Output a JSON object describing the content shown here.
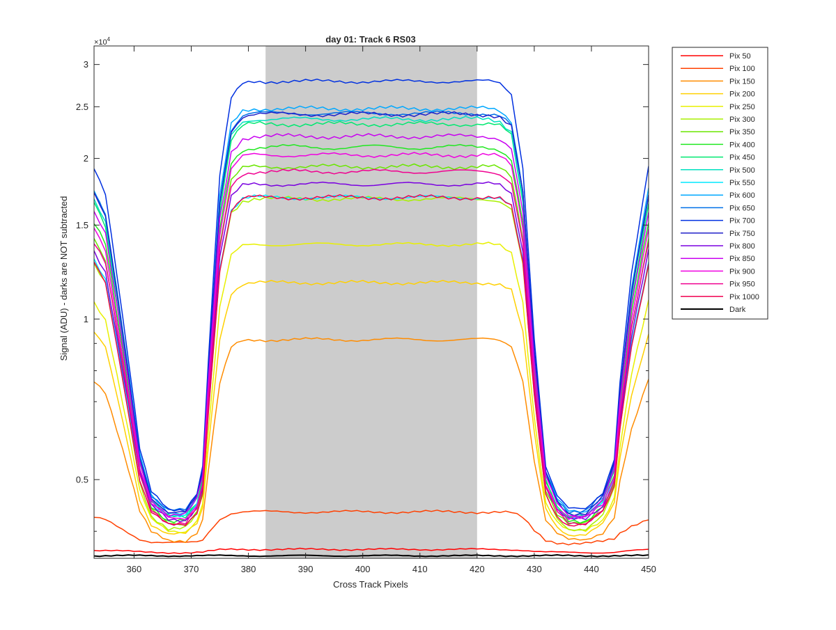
{
  "chart_data": {
    "type": "line",
    "title": "day 01: Track 6  RS03",
    "xlabel": "Cross Track Pixels",
    "ylabel": "Signal (ADU) - darks are NOT subtracted",
    "y_exponent_label": "×10",
    "y_exponent_power": "4",
    "y_scale": "log",
    "xlim": [
      353,
      450
    ],
    "ylim": [
      3560,
      32500
    ],
    "x_ticks": [
      360,
      370,
      380,
      390,
      400,
      410,
      420,
      430,
      440,
      450
    ],
    "y_ticks": [
      5000,
      10000,
      15000,
      20000,
      25000,
      30000
    ],
    "y_tick_labels": [
      "0.5",
      "1",
      "1.5",
      "2",
      "2.5",
      "3"
    ],
    "shaded_region": {
      "x": [
        383,
        420
      ],
      "color": "#cccccc"
    },
    "grid": false,
    "legend_position": "outside-right-top",
    "profile_knots": {
      "x": [
        353,
        355,
        357,
        359,
        361,
        363,
        366,
        369,
        371,
        372,
        373,
        375,
        377,
        379,
        381,
        383,
        420,
        422,
        424,
        426,
        428,
        430,
        432,
        434,
        436,
        439,
        442,
        444,
        445,
        447,
        450
      ],
      "frac": [
        0.8,
        0.74,
        0.55,
        0.35,
        0.14,
        0.04,
        0.0,
        0.0,
        0.04,
        0.1,
        0.35,
        0.78,
        0.96,
        0.995,
        1.0,
        1.0,
        1.0,
        1.0,
        0.995,
        0.97,
        0.8,
        0.4,
        0.1,
        0.03,
        0.0,
        0.0,
        0.04,
        0.12,
        0.3,
        0.55,
        0.8
      ]
    },
    "series": [
      {
        "name": "Pix 50",
        "color": "#ff0000",
        "plateau": 3700,
        "valley": 3650,
        "noise": 0.005
      },
      {
        "name": "Pix 100",
        "color": "#ff4000",
        "plateau": 4350,
        "valley": 3800,
        "noise": 0.008
      },
      {
        "name": "Pix 150",
        "color": "#ff8c00",
        "plateau": 9150,
        "valley": 3850,
        "noise": 0.01
      },
      {
        "name": "Pix 200",
        "color": "#ffd000",
        "plateau": 11700,
        "valley": 3950,
        "noise": 0.01
      },
      {
        "name": "Pix 250",
        "color": "#e8f000",
        "plateau": 13800,
        "valley": 4000,
        "noise": 0.01
      },
      {
        "name": "Pix 300",
        "color": "#a8f000",
        "plateau": 16800,
        "valley": 4050,
        "noise": 0.012
      },
      {
        "name": "Pix 350",
        "color": "#6ae600",
        "plateau": 19300,
        "valley": 4120,
        "noise": 0.012
      },
      {
        "name": "Pix 400",
        "color": "#20e820",
        "plateau": 21000,
        "valley": 4200,
        "noise": 0.015
      },
      {
        "name": "Pix 450",
        "color": "#00e870",
        "plateau": 23200,
        "valley": 4250,
        "noise": 0.012
      },
      {
        "name": "Pix 500",
        "color": "#00e0c0",
        "plateau": 23700,
        "valley": 4300,
        "noise": 0.012
      },
      {
        "name": "Pix 550",
        "color": "#00e8ff",
        "plateau": 16900,
        "valley": 4250,
        "noise": 0.012
      },
      {
        "name": "Pix 600",
        "color": "#00a8ff",
        "plateau": 24800,
        "valley": 4350,
        "noise": 0.012
      },
      {
        "name": "Pix 650",
        "color": "#0070e8",
        "plateau": 24300,
        "valley": 4370,
        "noise": 0.012
      },
      {
        "name": "Pix 700",
        "color": "#0030e0",
        "plateau": 27900,
        "valley": 4400,
        "noise": 0.01
      },
      {
        "name": "Pix 750",
        "color": "#2020c8",
        "plateau": 24200,
        "valley": 4330,
        "noise": 0.012
      },
      {
        "name": "Pix 800",
        "color": "#7a00e0",
        "plateau": 17900,
        "valley": 4200,
        "noise": 0.012
      },
      {
        "name": "Pix 850",
        "color": "#c800f0",
        "plateau": 22000,
        "valley": 4300,
        "noise": 0.012
      },
      {
        "name": "Pix 900",
        "color": "#f000e0",
        "plateau": 20300,
        "valley": 4220,
        "noise": 0.012
      },
      {
        "name": "Pix 950",
        "color": "#f00090",
        "plateau": 18900,
        "valley": 4150,
        "noise": 0.012
      },
      {
        "name": "Pix 1000",
        "color": "#f00050",
        "plateau": 16900,
        "valley": 4100,
        "noise": 0.012
      },
      {
        "name": "Dark",
        "color": "#000000",
        "plateau": 3600,
        "valley": 3600,
        "noise": 0.004
      }
    ]
  }
}
